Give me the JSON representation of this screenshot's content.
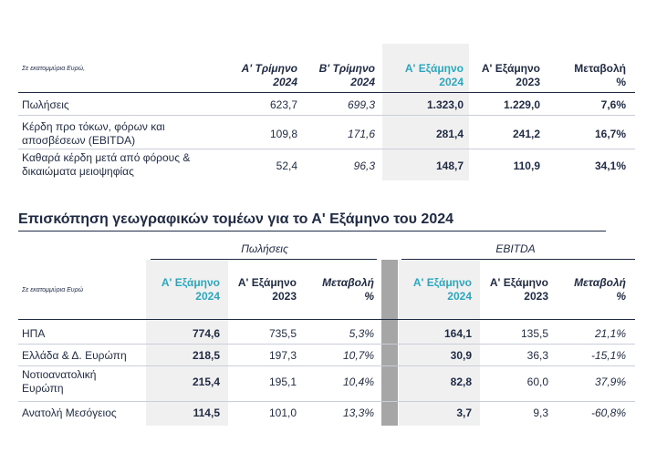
{
  "table1": {
    "unit_note": "Σε εκατομμύρια Ευρώ,",
    "columns": [
      {
        "l1": "Α' Τρίμηνο",
        "l2": "2024"
      },
      {
        "l1": "Β' Τρίμηνο",
        "l2": "2024"
      },
      {
        "l1": "Α' Εξάμηνο",
        "l2": "2024"
      },
      {
        "l1": "Α' Εξάμηνο",
        "l2": "2023"
      },
      {
        "l1": "Μεταβολή",
        "l2": "%"
      }
    ],
    "rows": [
      {
        "l1": "Πωλήσεις",
        "l2": "",
        "v": [
          "623,7",
          "699,3",
          "1.323,0",
          "1.229,0",
          "7,6%"
        ]
      },
      {
        "l1": "Κέρδη προ τόκων, φόρων και",
        "l2": "αποσβέσεων (EBITDA)",
        "v": [
          "109,8",
          "171,6",
          "281,4",
          "241,2",
          "16,7%"
        ]
      },
      {
        "l1": "Καθαρά κέρδη μετά από φόρους &",
        "l2": "δικαιώματα μειοψηφίας",
        "v": [
          "52,4",
          "96,3",
          "148,7",
          "110,9",
          "34,1%"
        ]
      }
    ]
  },
  "section_title": "Επισκόπηση γεωγραφικών τομέων για το Α' Εξάμηνο του 2024",
  "table2": {
    "group_sales": "Πωλήσεις",
    "group_ebitda": "EBITDA",
    "unit_note": "Σε εκατομμύρια Ευρώ",
    "columns": [
      {
        "l1": "Α' Εξάμηνο",
        "l2": "2024"
      },
      {
        "l1": "Α' Εξάμηνο",
        "l2": "2023"
      },
      {
        "l1": "Μεταβολή",
        "l2": "%"
      },
      {
        "l1": "Α' Εξάμηνο",
        "l2": "2024"
      },
      {
        "l1": "Α' Εξάμηνο",
        "l2": "2023"
      },
      {
        "l1": "Μεταβολή",
        "l2": "%"
      }
    ],
    "rows": [
      {
        "l1": "ΗΠΑ",
        "l2": "",
        "v": [
          "774,6",
          "735,5",
          "5,3%",
          "164,1",
          "135,5",
          "21,1%"
        ]
      },
      {
        "l1": "Ελλάδα & Δ. Ευρώπη",
        "l2": "",
        "v": [
          "218,5",
          "197,3",
          "10,7%",
          "30,9",
          "36,3",
          "-15,1%"
        ]
      },
      {
        "l1": "Νοτιοανατολική",
        "l2": "Ευρώπη",
        "v": [
          "215,4",
          "195,1",
          "10,4%",
          "82,8",
          "60,0",
          "37,9%"
        ]
      },
      {
        "l1": "Ανατολή Μεσόγειος",
        "l2": "",
        "v": [
          "114,5",
          "101,0",
          "13,3%",
          "3,7",
          "9,3",
          "-60,8%"
        ]
      }
    ]
  },
  "colors": {
    "accent": "#2aa7bf",
    "text": "#1f2a44",
    "shade": "#f0f0f0",
    "bar": "#a6a6a6"
  }
}
